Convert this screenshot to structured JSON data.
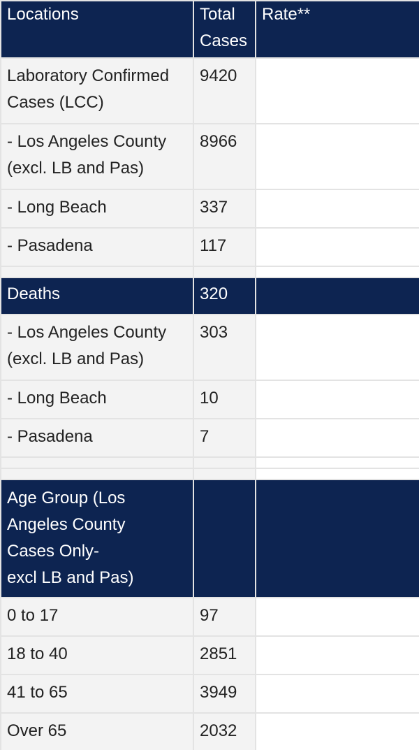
{
  "header": {
    "locations": "Locations",
    "total_cases": "Total\nCases",
    "rate": "Rate**"
  },
  "lcc": {
    "label": "Laboratory Confirmed\nCases (LCC)",
    "value": "9420",
    "rows": [
      {
        "label": "- Los Angeles County\n(excl. LB and Pas)",
        "value": "8966"
      },
      {
        "label": "- Long Beach",
        "value": "337"
      },
      {
        "label": "- Pasadena",
        "value": "117"
      }
    ]
  },
  "deaths": {
    "label": "Deaths",
    "value": "320",
    "rows": [
      {
        "label": "- Los Angeles County\n(excl. LB and Pas)",
        "value": "303"
      },
      {
        "label": "- Long Beach",
        "value": "10"
      },
      {
        "label": "- Pasadena",
        "value": "7"
      }
    ]
  },
  "age": {
    "label": "Age Group (Los\nAngeles County\nCases Only-\nexcl LB and Pas)",
    "rows": [
      {
        "label": "0 to 17",
        "value": "97"
      },
      {
        "label": "18 to 40",
        "value": "2851"
      },
      {
        "label": "41 to 65",
        "value": "3949"
      },
      {
        "label": "Over 65",
        "value": "2032"
      }
    ]
  },
  "colors": {
    "header_bg": "#0d2451",
    "header_text": "#ffffff",
    "row_bg": "#f3f3f3",
    "border": "#e3e3e3"
  }
}
